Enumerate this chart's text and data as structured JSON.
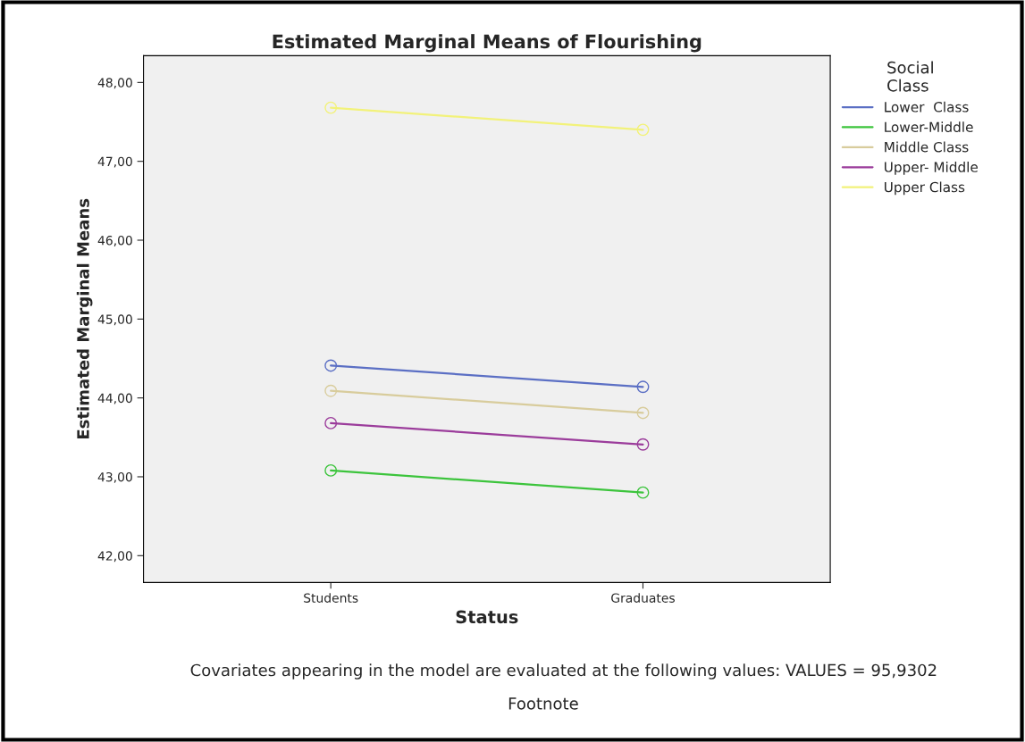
{
  "chart_data": {
    "type": "line",
    "title": "Estimated Marginal Means of Flourishing",
    "xlabel": "Status",
    "ylabel": "Estimated Marginal Means",
    "legend_title": "Social\nClass",
    "categories": [
      "Students",
      "Graduates"
    ],
    "series": [
      {
        "name": "Lower  Class",
        "color": "#5b6fc4",
        "values": [
          44.41,
          44.14
        ]
      },
      {
        "name": "Lower-Middle",
        "color": "#3cc43c",
        "values": [
          43.08,
          42.8
        ]
      },
      {
        "name": "Middle Class",
        "color": "#d8cc9c",
        "values": [
          44.09,
          43.81
        ]
      },
      {
        "name": "Upper- Middle",
        "color": "#9b3c9b",
        "values": [
          43.68,
          43.41
        ]
      },
      {
        "name": "Upper Class",
        "color": "#f2f27a",
        "values": [
          47.68,
          47.4
        ]
      }
    ],
    "ylim": [
      41.66,
      48.34
    ],
    "yticks": [
      {
        "value": 42,
        "label": "42,00"
      },
      {
        "value": 43,
        "label": "43,00"
      },
      {
        "value": 44,
        "label": "44,00"
      },
      {
        "value": 45,
        "label": "45,00"
      },
      {
        "value": 46,
        "label": "46,00"
      },
      {
        "value": 47,
        "label": "47,00"
      },
      {
        "value": 48,
        "label": "48,00"
      }
    ],
    "marker": "circle",
    "line_style": "solid",
    "grid": false,
    "legend": "right",
    "annotations": [
      "Covariates appearing in the model are evaluated at the following values: VALUES = 95,9302",
      "Footnote"
    ]
  }
}
